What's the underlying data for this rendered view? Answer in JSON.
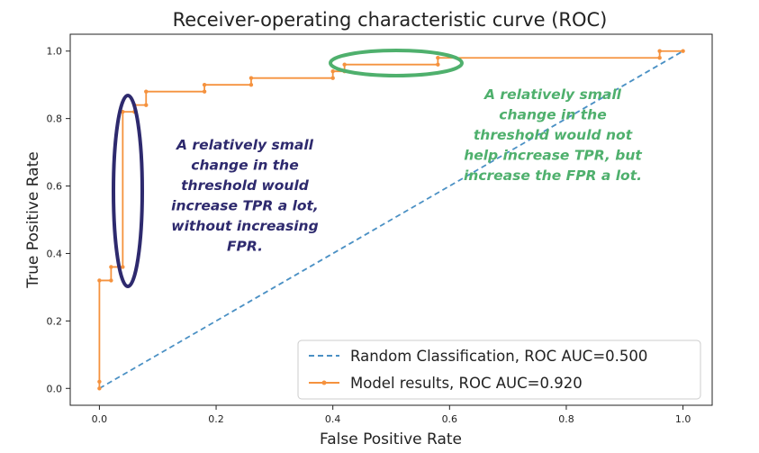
{
  "chart_data": {
    "type": "line",
    "title": "Receiver-operating characteristic curve (ROC)",
    "xlabel": "False Positive Rate",
    "ylabel": "True Positive Rate",
    "xlim": [
      -0.05,
      1.05
    ],
    "ylim": [
      -0.05,
      1.05
    ],
    "xticks": [
      "0.0",
      "0.2",
      "0.4",
      "0.6",
      "0.8",
      "1.0"
    ],
    "yticks": [
      "0.0",
      "0.2",
      "0.4",
      "0.6",
      "0.8",
      "1.0"
    ],
    "grid": false,
    "legend_location": "bottom-right",
    "series": [
      {
        "name": "Random Classification, ROC AUC=0.500",
        "style": "dashed",
        "color": "#4a90c4",
        "x": [
          0,
          1
        ],
        "y": [
          0,
          1
        ]
      },
      {
        "name": "Model results, ROC AUC=0.920",
        "style": "solid-marker",
        "color": "#f5923e",
        "x": [
          0,
          0,
          0,
          0.02,
          0.02,
          0.04,
          0.04,
          0.06,
          0.06,
          0.08,
          0.08,
          0.18,
          0.18,
          0.26,
          0.26,
          0.4,
          0.4,
          0.42,
          0.42,
          0.58,
          0.58,
          0.96,
          0.96,
          1
        ],
        "y": [
          0,
          0.02,
          0.32,
          0.32,
          0.36,
          0.36,
          0.82,
          0.82,
          0.84,
          0.84,
          0.88,
          0.88,
          0.9,
          0.9,
          0.92,
          0.92,
          0.94,
          0.94,
          0.96,
          0.96,
          0.98,
          0.98,
          1.0,
          1.0
        ]
      }
    ],
    "annotations": [
      {
        "text_lines": [
          "A relatively small",
          "change in the",
          "threshold would",
          "increase TPR a lot,",
          "without increasing",
          "FPR."
        ],
        "color": "#2e2a6e",
        "highlight": {
          "shape": "ellipse",
          "region": "vertical jump at FPR 0.04, TPR 0.36 to 0.82"
        }
      },
      {
        "text_lines": [
          "A relatively small",
          "change in the",
          "threshold would not",
          "help increase TPR, but",
          "increase the FPR a lot."
        ],
        "color": "#4fb06d",
        "highlight": {
          "shape": "ellipse",
          "region": "horizontal segment at TPR 0.96, FPR 0.42 to 0.58"
        }
      }
    ]
  }
}
